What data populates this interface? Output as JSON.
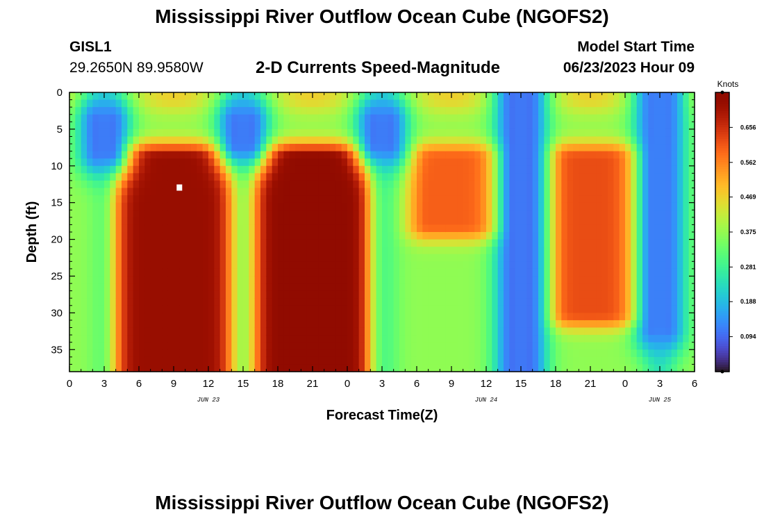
{
  "header": {
    "title": "Mississippi River Outflow Ocean Cube (NGOFS2)",
    "station_id": "GISL1",
    "station_coords": "29.2650N  89.9580W",
    "subtitle": "2-D Currents Speed-Magnitude",
    "model_start_label": "Model Start Time",
    "model_start_value": "06/23/2023 Hour 09"
  },
  "footer": {
    "title": "Mississippi River Outflow Ocean Cube (NGOFS2)"
  },
  "chart_data": {
    "type": "heatmap",
    "xlabel": "Forecast Time(Z)",
    "ylabel": "Depth (ft)",
    "x_range_hours": [
      0,
      54
    ],
    "x_tick_labels": [
      "0",
      "3",
      "6",
      "9",
      "12",
      "15",
      "18",
      "21",
      "0",
      "3",
      "6",
      "9",
      "12",
      "15",
      "18",
      "21",
      "0",
      "3",
      "6"
    ],
    "date_labels": [
      {
        "label": "JUN 23",
        "hour": 12
      },
      {
        "label": "JUN 24",
        "hour": 36
      },
      {
        "label": "JUN 25",
        "hour": 51
      }
    ],
    "ylim": [
      0,
      38
    ],
    "y_ticks": [
      0,
      5,
      10,
      15,
      20,
      25,
      30,
      35
    ],
    "y_inverted": true,
    "colorbar": {
      "title": "Knots",
      "min": 0.0,
      "max": 0.75,
      "tick_values": [
        0.094,
        0.188,
        0.281,
        0.375,
        0.469,
        0.562,
        0.656
      ],
      "tick_labels": [
        "0.094",
        "0.188",
        "0.281",
        "0.375",
        "0.469",
        "0.562",
        "0.656"
      ],
      "colormap": "turbo"
    },
    "features": [
      {
        "type": "peak",
        "hours": [
          4.5,
          13.5
        ],
        "depth_ft": [
          9,
          38
        ],
        "value_knots": 0.72
      },
      {
        "type": "peak",
        "hours": [
          16.5,
          25
        ],
        "depth_ft": [
          9,
          38
        ],
        "value_knots": 0.74
      },
      {
        "type": "peak",
        "hours": [
          31,
          37
        ],
        "depth_ft": [
          9,
          18
        ],
        "value_knots": 0.6
      },
      {
        "type": "peak",
        "hours": [
          43,
          49
        ],
        "depth_ft": [
          9,
          30
        ],
        "value_knots": 0.62
      },
      {
        "type": "minimum",
        "hour": 3,
        "depth_ft": [
          4,
          8
        ],
        "value_knots": 0.06
      },
      {
        "type": "minimum",
        "hour": 15,
        "depth_ft": [
          4,
          7
        ],
        "value_knots": 0.06
      },
      {
        "type": "minimum",
        "hour": 27,
        "depth_ft": [
          4,
          7
        ],
        "value_knots": 0.06
      },
      {
        "type": "minimum",
        "hour": 39,
        "depth_ft": [
          0,
          38
        ],
        "value_knots": 0.05
      },
      {
        "type": "minimum",
        "hour": 51,
        "depth_ft": [
          0,
          32
        ],
        "value_knots": 0.07
      }
    ],
    "marker": {
      "hour": 9.5,
      "depth_ft": 13,
      "color": "#ffffff"
    }
  }
}
